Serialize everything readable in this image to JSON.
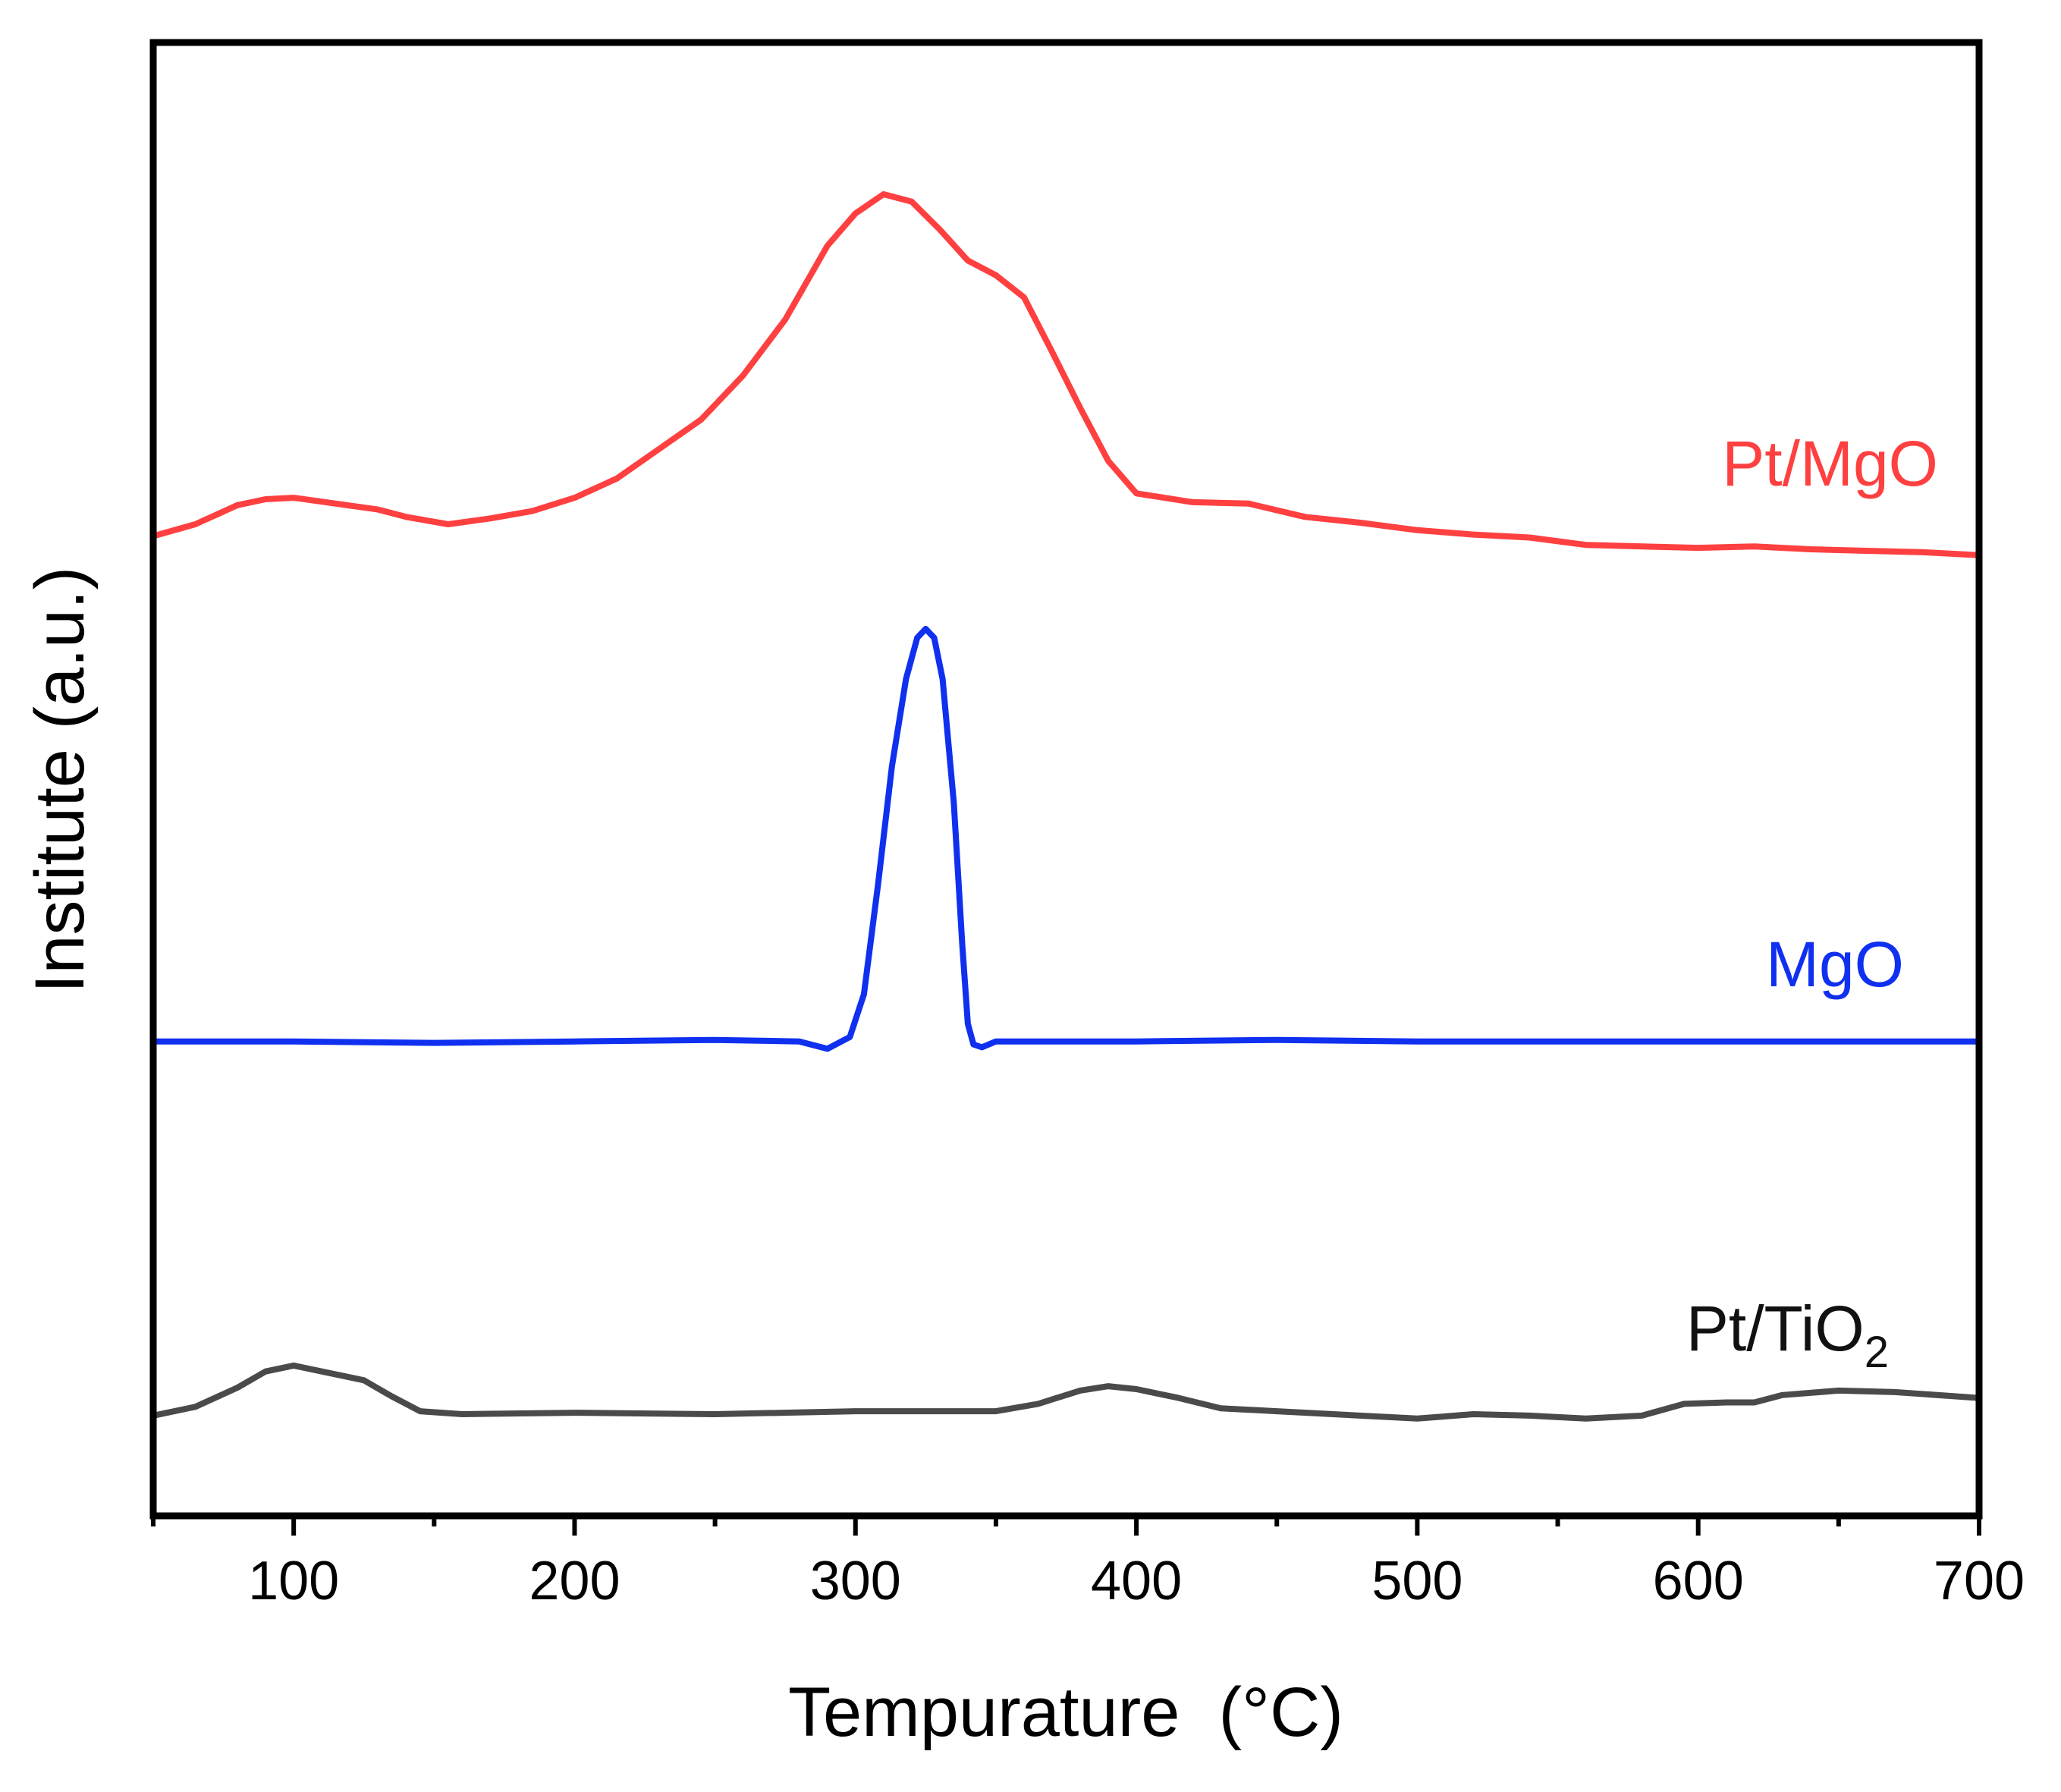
{
  "chart_data": {
    "type": "line",
    "title": "",
    "xlabel": "Tempurature  (°C)",
    "ylabel": "Institute (a.u.)",
    "xlim": [
      50,
      700
    ],
    "ylim": [
      0,
      100
    ],
    "x_ticks": [
      100,
      200,
      300,
      400,
      500,
      600,
      700
    ],
    "x_tick_labels": [
      "100",
      "200",
      "300",
      "400",
      "500",
      "600",
      "700"
    ],
    "y_ticks_shown": false,
    "grid": false,
    "legend": "inline labels at right end of each curve",
    "series": [
      {
        "name": "Pt/MgO",
        "label_text": "Pt/MgO",
        "color": "#ff4040",
        "points": [
          [
            50,
            66.5
          ],
          [
            65,
            67.3
          ],
          [
            80,
            68.6
          ],
          [
            90,
            69.0
          ],
          [
            100,
            69.1
          ],
          [
            115,
            68.7
          ],
          [
            130,
            68.3
          ],
          [
            140,
            67.8
          ],
          [
            155,
            67.3
          ],
          [
            170,
            67.7
          ],
          [
            185,
            68.2
          ],
          [
            200,
            69.1
          ],
          [
            215,
            70.4
          ],
          [
            230,
            72.4
          ],
          [
            245,
            74.4
          ],
          [
            260,
            77.4
          ],
          [
            275,
            81.2
          ],
          [
            290,
            86.2
          ],
          [
            300,
            88.4
          ],
          [
            310,
            89.7
          ],
          [
            320,
            89.2
          ],
          [
            330,
            87.3
          ],
          [
            340,
            85.2
          ],
          [
            350,
            84.2
          ],
          [
            360,
            82.7
          ],
          [
            370,
            79.0
          ],
          [
            380,
            75.2
          ],
          [
            390,
            71.6
          ],
          [
            400,
            69.4
          ],
          [
            420,
            68.8
          ],
          [
            440,
            68.7
          ],
          [
            460,
            67.8
          ],
          [
            480,
            67.4
          ],
          [
            500,
            66.9
          ],
          [
            520,
            66.6
          ],
          [
            540,
            66.4
          ],
          [
            560,
            65.9
          ],
          [
            580,
            65.8
          ],
          [
            600,
            65.7
          ],
          [
            620,
            65.8
          ],
          [
            640,
            65.6
          ],
          [
            660,
            65.5
          ],
          [
            680,
            65.4
          ],
          [
            700,
            65.2
          ]
        ]
      },
      {
        "name": "MgO",
        "label_text": "MgO",
        "color": "#1030f0",
        "points": [
          [
            50,
            32.2
          ],
          [
            100,
            32.2
          ],
          [
            150,
            32.1
          ],
          [
            200,
            32.2
          ],
          [
            250,
            32.3
          ],
          [
            280,
            32.2
          ],
          [
            290,
            31.7
          ],
          [
            298,
            32.5
          ],
          [
            303,
            35.4
          ],
          [
            308,
            42.8
          ],
          [
            313,
            50.9
          ],
          [
            318,
            56.8
          ],
          [
            322,
            59.6
          ],
          [
            325,
            60.2
          ],
          [
            328,
            59.6
          ],
          [
            331,
            56.8
          ],
          [
            335,
            48.4
          ],
          [
            338,
            38.8
          ],
          [
            340,
            33.4
          ],
          [
            342,
            32.0
          ],
          [
            345,
            31.8
          ],
          [
            350,
            32.2
          ],
          [
            400,
            32.2
          ],
          [
            450,
            32.3
          ],
          [
            500,
            32.2
          ],
          [
            550,
            32.2
          ],
          [
            600,
            32.2
          ],
          [
            650,
            32.2
          ],
          [
            700,
            32.2
          ]
        ]
      },
      {
        "name": "Pt/TiO2",
        "label_base": "Pt/TiO",
        "label_sub": "2",
        "color": "#4a4a4a",
        "points": [
          [
            50,
            6.8
          ],
          [
            65,
            7.4
          ],
          [
            80,
            8.7
          ],
          [
            90,
            9.8
          ],
          [
            100,
            10.2
          ],
          [
            110,
            9.8
          ],
          [
            125,
            9.2
          ],
          [
            135,
            8.1
          ],
          [
            145,
            7.1
          ],
          [
            160,
            6.9
          ],
          [
            200,
            7.0
          ],
          [
            250,
            6.9
          ],
          [
            300,
            7.1
          ],
          [
            350,
            7.1
          ],
          [
            365,
            7.6
          ],
          [
            380,
            8.5
          ],
          [
            390,
            8.8
          ],
          [
            400,
            8.6
          ],
          [
            415,
            8.0
          ],
          [
            430,
            7.3
          ],
          [
            450,
            7.1
          ],
          [
            470,
            6.9
          ],
          [
            500,
            6.6
          ],
          [
            520,
            6.9
          ],
          [
            540,
            6.8
          ],
          [
            560,
            6.6
          ],
          [
            580,
            6.8
          ],
          [
            595,
            7.6
          ],
          [
            610,
            7.7
          ],
          [
            620,
            7.7
          ],
          [
            630,
            8.2
          ],
          [
            650,
            8.5
          ],
          [
            670,
            8.4
          ],
          [
            700,
            8.0
          ]
        ]
      }
    ]
  }
}
